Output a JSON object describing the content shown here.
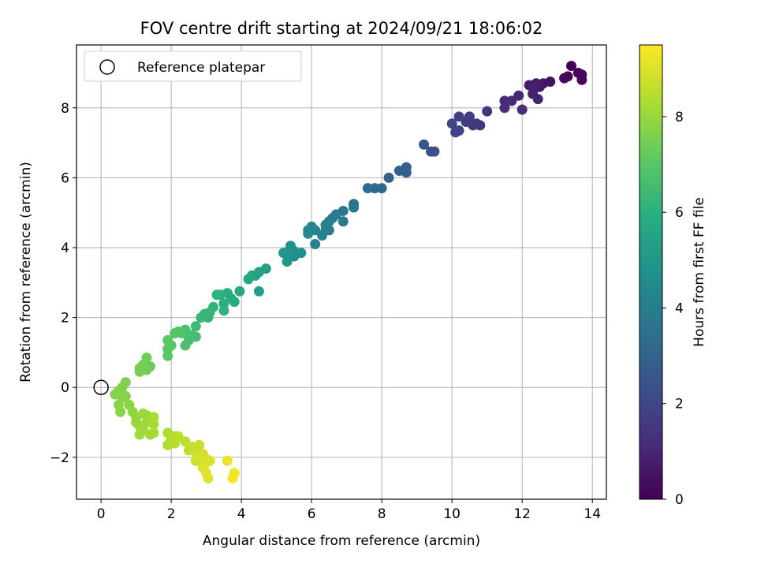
{
  "chart_data": {
    "type": "scatter",
    "title": "FOV centre drift starting at 2024/09/21 18:06:02",
    "xlabel": "Angular distance from reference (arcmin)",
    "ylabel": "Rotation from reference (arcmin)",
    "xlim": [
      -0.7,
      14.4
    ],
    "ylim": [
      -3.2,
      9.8
    ],
    "xticks": [
      0,
      2,
      4,
      6,
      8,
      10,
      12,
      14
    ],
    "xtick_labels": [
      "0",
      "2",
      "4",
      "6",
      "8",
      "10",
      "12",
      "14"
    ],
    "yticks": [
      -2,
      0,
      2,
      4,
      6,
      8
    ],
    "ytick_labels": [
      "−2",
      "0",
      "2",
      "4",
      "6",
      "8"
    ],
    "grid": true,
    "legend": {
      "position": "top-left",
      "entries": [
        {
          "label": "Reference platepar",
          "marker": "open-circle"
        }
      ]
    },
    "reference_point": {
      "x": 0,
      "y": 0
    },
    "colorbar": {
      "label": "Hours from first FF file",
      "min": 0,
      "max": 9.5,
      "ticks": [
        0,
        2,
        4,
        6,
        8
      ],
      "tick_labels": [
        "0",
        "2",
        "4",
        "6",
        "8"
      ],
      "colormap": "viridis"
    },
    "points": [
      {
        "x": 13.4,
        "y": 9.2,
        "h": 0.0
      },
      {
        "x": 13.6,
        "y": 9.0,
        "h": 0.05
      },
      {
        "x": 13.7,
        "y": 8.8,
        "h": 0.1
      },
      {
        "x": 13.7,
        "y": 8.95,
        "h": 0.15
      },
      {
        "x": 13.2,
        "y": 8.85,
        "h": 0.2
      },
      {
        "x": 13.3,
        "y": 8.9,
        "h": 0.25
      },
      {
        "x": 12.8,
        "y": 8.75,
        "h": 0.45
      },
      {
        "x": 12.6,
        "y": 8.7,
        "h": 0.55
      },
      {
        "x": 12.5,
        "y": 8.6,
        "h": 0.65
      },
      {
        "x": 12.4,
        "y": 8.7,
        "h": 0.7
      },
      {
        "x": 12.2,
        "y": 8.65,
        "h": 0.75
      },
      {
        "x": 12.3,
        "y": 8.4,
        "h": 0.85
      },
      {
        "x": 12.45,
        "y": 8.25,
        "h": 0.9
      },
      {
        "x": 12.35,
        "y": 8.55,
        "h": 0.8
      },
      {
        "x": 11.9,
        "y": 8.35,
        "h": 1.0
      },
      {
        "x": 11.7,
        "y": 8.2,
        "h": 1.1
      },
      {
        "x": 11.5,
        "y": 8.2,
        "h": 1.15
      },
      {
        "x": 11.5,
        "y": 8.0,
        "h": 1.2
      },
      {
        "x": 12.0,
        "y": 7.95,
        "h": 1.25
      },
      {
        "x": 11.0,
        "y": 7.9,
        "h": 1.4
      },
      {
        "x": 10.8,
        "y": 7.5,
        "h": 1.5
      },
      {
        "x": 10.6,
        "y": 7.5,
        "h": 1.6
      },
      {
        "x": 10.5,
        "y": 7.75,
        "h": 1.65
      },
      {
        "x": 10.4,
        "y": 7.6,
        "h": 1.7
      },
      {
        "x": 10.2,
        "y": 7.75,
        "h": 1.8
      },
      {
        "x": 10.1,
        "y": 7.3,
        "h": 1.85
      },
      {
        "x": 10.2,
        "y": 7.35,
        "h": 1.9
      },
      {
        "x": 10.0,
        "y": 7.55,
        "h": 1.95
      },
      {
        "x": 10.7,
        "y": 7.55,
        "h": 1.55
      },
      {
        "x": 9.5,
        "y": 6.75,
        "h": 2.3
      },
      {
        "x": 9.4,
        "y": 6.75,
        "h": 2.35
      },
      {
        "x": 9.2,
        "y": 6.95,
        "h": 2.4
      },
      {
        "x": 8.7,
        "y": 6.3,
        "h": 2.8
      },
      {
        "x": 8.7,
        "y": 6.15,
        "h": 2.85
      },
      {
        "x": 8.5,
        "y": 6.2,
        "h": 2.9
      },
      {
        "x": 8.2,
        "y": 6.0,
        "h": 3.0
      },
      {
        "x": 8.0,
        "y": 5.7,
        "h": 3.15
      },
      {
        "x": 7.8,
        "y": 5.7,
        "h": 3.2
      },
      {
        "x": 7.6,
        "y": 5.7,
        "h": 3.3
      },
      {
        "x": 7.2,
        "y": 5.25,
        "h": 3.6
      },
      {
        "x": 7.2,
        "y": 5.15,
        "h": 3.65
      },
      {
        "x": 6.9,
        "y": 5.05,
        "h": 3.8
      },
      {
        "x": 6.9,
        "y": 4.75,
        "h": 3.85
      },
      {
        "x": 6.7,
        "y": 4.95,
        "h": 3.9
      },
      {
        "x": 6.6,
        "y": 4.85,
        "h": 3.95
      },
      {
        "x": 6.5,
        "y": 4.75,
        "h": 4.0
      },
      {
        "x": 6.4,
        "y": 4.65,
        "h": 4.1
      },
      {
        "x": 6.4,
        "y": 4.5,
        "h": 4.15
      },
      {
        "x": 6.3,
        "y": 4.35,
        "h": 4.2
      },
      {
        "x": 6.1,
        "y": 4.5,
        "h": 4.3
      },
      {
        "x": 6.0,
        "y": 4.6,
        "h": 4.35
      },
      {
        "x": 5.9,
        "y": 4.5,
        "h": 4.4
      },
      {
        "x": 5.9,
        "y": 4.4,
        "h": 4.45
      },
      {
        "x": 6.1,
        "y": 4.1,
        "h": 4.25
      },
      {
        "x": 6.5,
        "y": 4.5,
        "h": 4.05
      },
      {
        "x": 5.7,
        "y": 3.85,
        "h": 4.7
      },
      {
        "x": 5.5,
        "y": 3.9,
        "h": 4.75
      },
      {
        "x": 5.4,
        "y": 4.05,
        "h": 4.8
      },
      {
        "x": 5.4,
        "y": 3.75,
        "h": 4.85
      },
      {
        "x": 5.3,
        "y": 3.85,
        "h": 4.9
      },
      {
        "x": 5.3,
        "y": 3.6,
        "h": 4.95
      },
      {
        "x": 5.2,
        "y": 3.85,
        "h": 5.0
      },
      {
        "x": 5.5,
        "y": 3.75,
        "h": 4.72
      },
      {
        "x": 4.7,
        "y": 3.4,
        "h": 5.3
      },
      {
        "x": 4.5,
        "y": 3.3,
        "h": 5.4
      },
      {
        "x": 4.4,
        "y": 3.2,
        "h": 5.45
      },
      {
        "x": 4.3,
        "y": 3.2,
        "h": 5.5
      },
      {
        "x": 4.2,
        "y": 3.1,
        "h": 5.55
      },
      {
        "x": 4.5,
        "y": 2.75,
        "h": 5.35
      },
      {
        "x": 3.95,
        "y": 2.75,
        "h": 5.7
      },
      {
        "x": 3.8,
        "y": 2.45,
        "h": 5.8
      },
      {
        "x": 3.7,
        "y": 2.55,
        "h": 5.85
      },
      {
        "x": 3.6,
        "y": 2.7,
        "h": 5.9
      },
      {
        "x": 3.5,
        "y": 2.4,
        "h": 5.95
      },
      {
        "x": 3.4,
        "y": 2.65,
        "h": 6.0
      },
      {
        "x": 3.5,
        "y": 2.2,
        "h": 6.05
      },
      {
        "x": 3.3,
        "y": 2.65,
        "h": 6.1
      },
      {
        "x": 3.2,
        "y": 2.3,
        "h": 6.15
      },
      {
        "x": 3.1,
        "y": 2.15,
        "h": 6.2
      },
      {
        "x": 3.05,
        "y": 2.0,
        "h": 6.25
      },
      {
        "x": 2.95,
        "y": 2.1,
        "h": 6.3
      },
      {
        "x": 2.85,
        "y": 2.0,
        "h": 6.35
      },
      {
        "x": 2.7,
        "y": 1.75,
        "h": 6.5
      },
      {
        "x": 2.7,
        "y": 1.45,
        "h": 6.55
      },
      {
        "x": 2.6,
        "y": 1.5,
        "h": 6.6
      },
      {
        "x": 2.5,
        "y": 1.35,
        "h": 6.65
      },
      {
        "x": 2.4,
        "y": 1.65,
        "h": 6.7
      },
      {
        "x": 2.4,
        "y": 1.2,
        "h": 6.75
      },
      {
        "x": 2.3,
        "y": 1.55,
        "h": 6.8
      },
      {
        "x": 2.2,
        "y": 1.6,
        "h": 6.85
      },
      {
        "x": 2.1,
        "y": 1.55,
        "h": 6.9
      },
      {
        "x": 2.0,
        "y": 1.2,
        "h": 6.95
      },
      {
        "x": 1.9,
        "y": 1.1,
        "h": 7.0
      },
      {
        "x": 1.9,
        "y": 0.9,
        "h": 7.05
      },
      {
        "x": 1.9,
        "y": 1.35,
        "h": 7.1
      },
      {
        "x": 2.55,
        "y": 1.45,
        "h": 6.62
      },
      {
        "x": 1.4,
        "y": 0.6,
        "h": 7.3
      },
      {
        "x": 1.3,
        "y": 0.85,
        "h": 7.35
      },
      {
        "x": 1.3,
        "y": 0.5,
        "h": 7.4
      },
      {
        "x": 1.2,
        "y": 0.65,
        "h": 7.45
      },
      {
        "x": 1.1,
        "y": 0.45,
        "h": 7.5
      },
      {
        "x": 1.1,
        "y": 0.55,
        "h": 7.52
      },
      {
        "x": 0.7,
        "y": 0.15,
        "h": 7.6
      },
      {
        "x": 0.6,
        "y": 0.0,
        "h": 7.62
      },
      {
        "x": 0.5,
        "y": -0.1,
        "h": 7.65
      },
      {
        "x": 0.4,
        "y": -0.2,
        "h": 7.68
      },
      {
        "x": 0.7,
        "y": -0.25,
        "h": 7.7
      },
      {
        "x": 0.6,
        "y": -0.3,
        "h": 7.72
      },
      {
        "x": 0.5,
        "y": -0.5,
        "h": 7.75
      },
      {
        "x": 0.55,
        "y": -0.7,
        "h": 7.78
      },
      {
        "x": 0.8,
        "y": -0.5,
        "h": 7.8
      },
      {
        "x": 0.9,
        "y": -0.7,
        "h": 7.85
      },
      {
        "x": 1.0,
        "y": -0.85,
        "h": 7.9
      },
      {
        "x": 1.0,
        "y": -1.0,
        "h": 7.95
      },
      {
        "x": 1.1,
        "y": -1.1,
        "h": 8.0
      },
      {
        "x": 1.2,
        "y": -0.75,
        "h": 8.02
      },
      {
        "x": 1.3,
        "y": -0.8,
        "h": 8.05
      },
      {
        "x": 1.3,
        "y": -1.0,
        "h": 8.08
      },
      {
        "x": 1.1,
        "y": -1.35,
        "h": 8.1
      },
      {
        "x": 1.2,
        "y": -1.2,
        "h": 8.12
      },
      {
        "x": 1.4,
        "y": -1.35,
        "h": 8.15
      },
      {
        "x": 1.5,
        "y": -1.3,
        "h": 8.18
      },
      {
        "x": 1.5,
        "y": -1.05,
        "h": 8.2
      },
      {
        "x": 1.5,
        "y": -0.85,
        "h": 8.22
      },
      {
        "x": 1.9,
        "y": -1.3,
        "h": 8.3
      },
      {
        "x": 1.9,
        "y": -1.65,
        "h": 8.35
      },
      {
        "x": 2.0,
        "y": -1.5,
        "h": 8.38
      },
      {
        "x": 2.1,
        "y": -1.4,
        "h": 8.42
      },
      {
        "x": 2.1,
        "y": -1.6,
        "h": 8.45
      },
      {
        "x": 2.2,
        "y": -1.4,
        "h": 8.48
      },
      {
        "x": 2.4,
        "y": -1.55,
        "h": 8.55
      },
      {
        "x": 2.5,
        "y": -1.8,
        "h": 8.6
      },
      {
        "x": 2.6,
        "y": -1.7,
        "h": 8.65
      },
      {
        "x": 2.7,
        "y": -1.85,
        "h": 8.7
      },
      {
        "x": 2.8,
        "y": -1.65,
        "h": 8.72
      },
      {
        "x": 2.7,
        "y": -2.1,
        "h": 8.75
      },
      {
        "x": 2.8,
        "y": -2.0,
        "h": 8.8
      },
      {
        "x": 2.9,
        "y": -1.9,
        "h": 8.85
      },
      {
        "x": 3.0,
        "y": -2.05,
        "h": 8.9
      },
      {
        "x": 3.1,
        "y": -2.1,
        "h": 8.95
      },
      {
        "x": 2.9,
        "y": -2.3,
        "h": 9.0
      },
      {
        "x": 3.0,
        "y": -2.45,
        "h": 9.05
      },
      {
        "x": 3.05,
        "y": -2.6,
        "h": 9.1
      },
      {
        "x": 2.95,
        "y": -2.2,
        "h": 8.98
      },
      {
        "x": 3.6,
        "y": -2.1,
        "h": 9.2
      },
      {
        "x": 3.8,
        "y": -2.45,
        "h": 9.3
      },
      {
        "x": 3.75,
        "y": -2.6,
        "h": 9.35
      }
    ]
  }
}
